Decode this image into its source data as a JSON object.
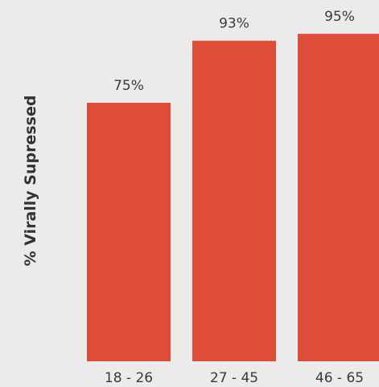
{
  "chart_data": {
    "type": "bar",
    "ylabel": "% Virally Supressed",
    "xlabel": "",
    "categories": [
      "18 - 26",
      "27 - 45",
      "46 - 65"
    ],
    "values": [
      75,
      93,
      95
    ],
    "value_labels": [
      "75%",
      "93%",
      "95%"
    ],
    "ylim": [
      0,
      100
    ],
    "grid": false,
    "legend": "none",
    "colors": {
      "bar": "#df4c38",
      "background": "#ebebeb",
      "text": "#3a3a3a"
    }
  }
}
